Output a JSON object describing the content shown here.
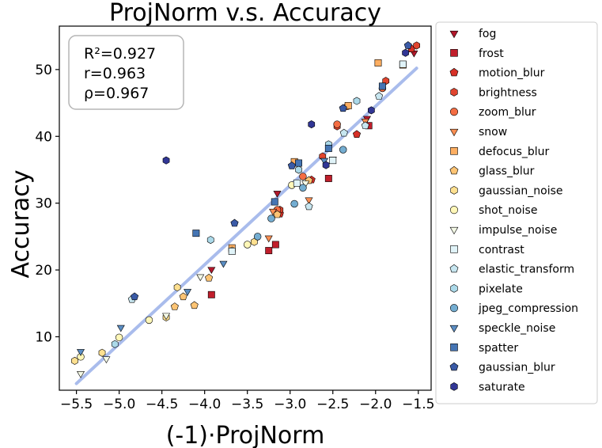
{
  "chart_data": {
    "type": "scatter",
    "title": "ProjNorm  v.s.  Accuracy",
    "xlabel": "(-1)·ProjNorm",
    "ylabel": "Accuracy",
    "xlim": [
      -5.7,
      -1.35
    ],
    "ylim": [
      2,
      56.5
    ],
    "xticks": [
      -5.5,
      -5.0,
      -4.5,
      -4.0,
      -3.5,
      -3.0,
      -2.5,
      -2.0,
      -1.5
    ],
    "xtick_labels": [
      "−5.5",
      "−5.0",
      "−4.5",
      "−4.0",
      "−3.5",
      "−3.0",
      "−2.5",
      "−2.0",
      "−1.5"
    ],
    "yticks": [
      10,
      20,
      30,
      40,
      50
    ],
    "ytick_labels": [
      "10",
      "20",
      "30",
      "40",
      "50"
    ],
    "grid": false,
    "legend_placement": "outside-right",
    "stats": {
      "r2": "R²=0.927",
      "r": "r=0.963",
      "rho": "ρ=0.967"
    },
    "fit_line": {
      "x": [
        -5.5,
        -1.52
      ],
      "y": [
        3.0,
        50.2
      ],
      "color": "#a5b9ec"
    },
    "series": [
      {
        "name": "fog",
        "marker": "triangle-down",
        "color": "#b2182b",
        "points": [
          [
            -3.92,
            20.1
          ],
          [
            -3.15,
            31.5
          ],
          [
            -2.5,
            36.6
          ],
          [
            -2.1,
            42.7
          ],
          [
            -1.55,
            52.5
          ]
        ]
      },
      {
        "name": "frost",
        "marker": "square",
        "color": "#c01e2b",
        "points": [
          [
            -3.92,
            16.3
          ],
          [
            -3.25,
            22.9
          ],
          [
            -3.17,
            23.8
          ],
          [
            -2.55,
            33.7
          ],
          [
            -2.08,
            41.6
          ]
        ]
      },
      {
        "name": "motion_blur",
        "marker": "pentagon",
        "color": "#d73027",
        "points": [
          [
            -3.12,
            28.4
          ],
          [
            -2.75,
            33.5
          ],
          [
            -2.22,
            40.3
          ],
          [
            -1.58,
            53.1
          ]
        ]
      },
      {
        "name": "brightness",
        "marker": "hexagon",
        "color": "#e0452f",
        "points": [
          [
            -3.12,
            29.0
          ],
          [
            -2.62,
            37.0
          ],
          [
            -2.45,
            41.5
          ],
          [
            -1.88,
            48.3
          ],
          [
            -1.52,
            53.6
          ]
        ]
      },
      {
        "name": "zoom_blur",
        "marker": "circle",
        "color": "#f46d43",
        "points": [
          [
            -3.15,
            29.0
          ],
          [
            -2.85,
            34.0
          ],
          [
            -2.45,
            41.8
          ],
          [
            -2.33,
            44.5
          ],
          [
            -1.92,
            47.2
          ]
        ]
      },
      {
        "name": "snow",
        "marker": "triangle-down",
        "color": "#f98e52",
        "points": [
          [
            -3.25,
            24.8
          ],
          [
            -3.2,
            28.8
          ],
          [
            -2.78,
            30.5
          ],
          [
            -2.12,
            42.3
          ]
        ]
      },
      {
        "name": "defocus_blur",
        "marker": "square",
        "color": "#fdae61",
        "points": [
          [
            -3.68,
            23.3
          ],
          [
            -2.95,
            36.2
          ],
          [
            -2.32,
            44.6
          ],
          [
            -1.97,
            51.0
          ],
          [
            -1.68,
            50.7
          ]
        ]
      },
      {
        "name": "glass_blur",
        "marker": "pentagon",
        "color": "#fdc474",
        "points": [
          [
            -4.35,
            14.5
          ],
          [
            -4.25,
            16.0
          ],
          [
            -4.12,
            14.7
          ],
          [
            -3.95,
            18.8
          ],
          [
            -3.15,
            28.3
          ],
          [
            -2.78,
            33.4
          ]
        ]
      },
      {
        "name": "gaussian_noise",
        "marker": "hexagon",
        "color": "#fee090",
        "points": [
          [
            -5.52,
            6.4
          ],
          [
            -5.2,
            7.6
          ],
          [
            -4.45,
            12.9
          ],
          [
            -4.32,
            17.4
          ],
          [
            -3.68,
            22.9
          ],
          [
            -3.42,
            24.2
          ]
        ]
      },
      {
        "name": "shot_noise",
        "marker": "circle",
        "color": "#fff7b8",
        "points": [
          [
            -5.45,
            7.0
          ],
          [
            -5.0,
            9.9
          ],
          [
            -4.65,
            12.5
          ],
          [
            -3.5,
            23.8
          ],
          [
            -2.98,
            32.7
          ]
        ]
      },
      {
        "name": "impulse_noise",
        "marker": "triangle-down",
        "color": "#f4f9e6",
        "points": [
          [
            -5.45,
            4.5
          ],
          [
            -5.15,
            6.7
          ],
          [
            -4.45,
            13.2
          ],
          [
            -4.05,
            19.0
          ],
          [
            -2.82,
            33.0
          ]
        ]
      },
      {
        "name": "contrast",
        "marker": "square",
        "color": "#e0f3f8",
        "points": [
          [
            -3.68,
            22.8
          ],
          [
            -2.92,
            33.0
          ],
          [
            -2.5,
            36.4
          ],
          [
            -1.68,
            50.8
          ]
        ]
      },
      {
        "name": "elastic_transform",
        "marker": "pentagon",
        "color": "#c7e6f0",
        "points": [
          [
            -4.85,
            15.6
          ],
          [
            -2.78,
            29.5
          ],
          [
            -2.37,
            40.5
          ],
          [
            -2.12,
            41.6
          ],
          [
            -1.96,
            46.0
          ]
        ]
      },
      {
        "name": "pixelate",
        "marker": "hexagon",
        "color": "#abd9e9",
        "points": [
          [
            -5.05,
            8.9
          ],
          [
            -3.93,
            24.5
          ],
          [
            -2.9,
            35.0
          ],
          [
            -2.55,
            38.8
          ],
          [
            -2.22,
            45.3
          ]
        ]
      },
      {
        "name": "jpeg_compression",
        "marker": "circle",
        "color": "#74add1",
        "points": [
          [
            -3.38,
            25.0
          ],
          [
            -3.22,
            27.7
          ],
          [
            -2.95,
            29.9
          ],
          [
            -2.85,
            32.3
          ],
          [
            -2.38,
            38.0
          ]
        ]
      },
      {
        "name": "speckle_noise",
        "marker": "triangle-down",
        "color": "#5b8ec4",
        "points": [
          [
            -5.45,
            7.8
          ],
          [
            -4.98,
            11.4
          ],
          [
            -4.2,
            16.8
          ],
          [
            -3.78,
            21.0
          ],
          [
            -2.6,
            36.4
          ]
        ]
      },
      {
        "name": "spatter",
        "marker": "square",
        "color": "#4575b4",
        "points": [
          [
            -4.1,
            25.5
          ],
          [
            -3.18,
            30.2
          ],
          [
            -2.9,
            36.0
          ],
          [
            -2.55,
            38.2
          ],
          [
            -1.92,
            47.5
          ]
        ]
      },
      {
        "name": "gaussian_blur",
        "marker": "pentagon",
        "color": "#3a5aa6",
        "points": [
          [
            -4.82,
            16.0
          ],
          [
            -3.65,
            27.0
          ],
          [
            -2.98,
            35.6
          ],
          [
            -2.38,
            44.2
          ],
          [
            -1.62,
            53.6
          ]
        ]
      },
      {
        "name": "saturate",
        "marker": "hexagon",
        "color": "#313695",
        "points": [
          [
            -4.45,
            36.4
          ],
          [
            -2.75,
            41.8
          ],
          [
            -2.58,
            35.7
          ],
          [
            -2.05,
            43.9
          ],
          [
            -1.65,
            52.5
          ]
        ]
      }
    ]
  }
}
